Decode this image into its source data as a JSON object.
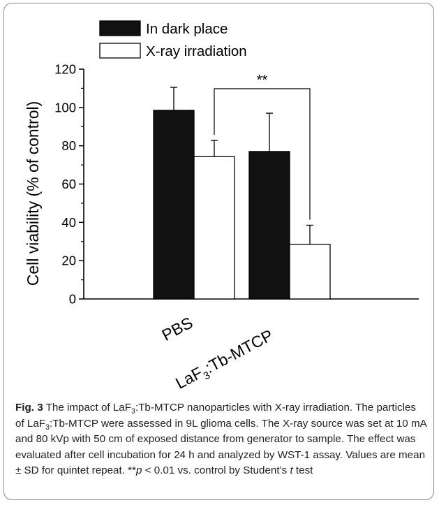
{
  "chart_data": {
    "type": "bar",
    "title": "",
    "xlabel": "",
    "ylabel": "Cell viability (% of control)",
    "ylim": [
      0,
      120
    ],
    "yticks": [
      0,
      20,
      40,
      60,
      80,
      100,
      120
    ],
    "categories": [
      {
        "base": "PBS",
        "sub": ""
      },
      {
        "base": "LaF",
        "sub": "3",
        "rest": ":Tb-MTCP"
      }
    ],
    "series": [
      {
        "name": "In dark place",
        "fill": "#111111",
        "values": [
          98.5,
          77
        ],
        "errors": [
          12,
          20
        ]
      },
      {
        "name": "X-ray irradiation",
        "fill": "#ffffff",
        "values": [
          74.3,
          28.5
        ],
        "errors": [
          8.5,
          10
        ]
      }
    ],
    "significance": {
      "label": "**"
    },
    "legend_position": "top-left"
  },
  "caption": {
    "fig_label": "Fig. 3",
    "part1": " The impact of LaF",
    "sub1": "3",
    "part2": ":Tb-MTCP nanoparticles with X-ray irradiation. The particles of LaF",
    "sub2": "3",
    "part3": ":Tb-MTCP were assessed in 9L glioma cells. The X-ray source was set at 10 mA and 80 kVp with 50 cm of exposed distance from generator to sample. The effect was evaluated after cell incubation for 24 h and analyzed by WST-1 assay. Values are mean ± SD for quintet repeat. **",
    "p_symbol": "p",
    "part4": " < 0.01 vs. control by Student’s ",
    "t_symbol": "t",
    "part5": " test"
  }
}
